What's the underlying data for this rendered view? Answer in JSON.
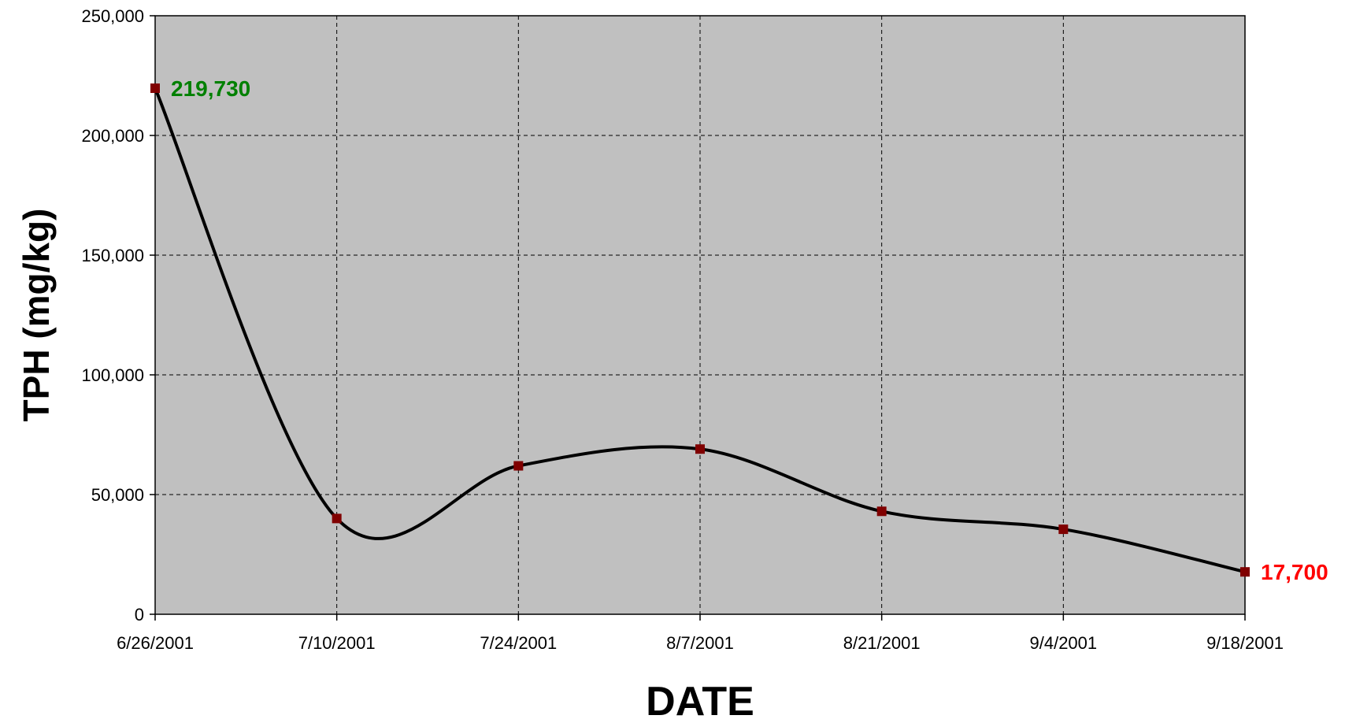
{
  "chart_data": {
    "type": "line",
    "title": "",
    "xlabel": "DATE",
    "ylabel": "TPH (mg/kg)",
    "x_ticks": [
      "6/26/2001",
      "7/10/2001",
      "7/24/2001",
      "8/7/2001",
      "8/21/2001",
      "9/4/2001",
      "9/18/2001"
    ],
    "y_ticks": [
      "0",
      "50,000",
      "100,000",
      "150,000",
      "200,000",
      "250,000"
    ],
    "ylim": [
      0,
      250000
    ],
    "xlim": [
      "6/26/2001",
      "9/18/2001"
    ],
    "grid": true,
    "plot_background": "#c0c0c0",
    "line_color": "#000000",
    "marker_color": "#800000",
    "series": [
      {
        "x": [
          "6/26/2001",
          "7/10/2001",
          "7/24/2001",
          "8/7/2001",
          "8/21/2001",
          "9/4/2001",
          "9/18/2001"
        ],
        "values": [
          219730,
          40000,
          62000,
          69000,
          43000,
          35500,
          17700
        ]
      }
    ],
    "annotations": [
      {
        "point_index": 0,
        "text": "219,730",
        "color": "#008000"
      },
      {
        "point_index": 6,
        "text": "17,700",
        "color": "#ff0000"
      }
    ]
  }
}
